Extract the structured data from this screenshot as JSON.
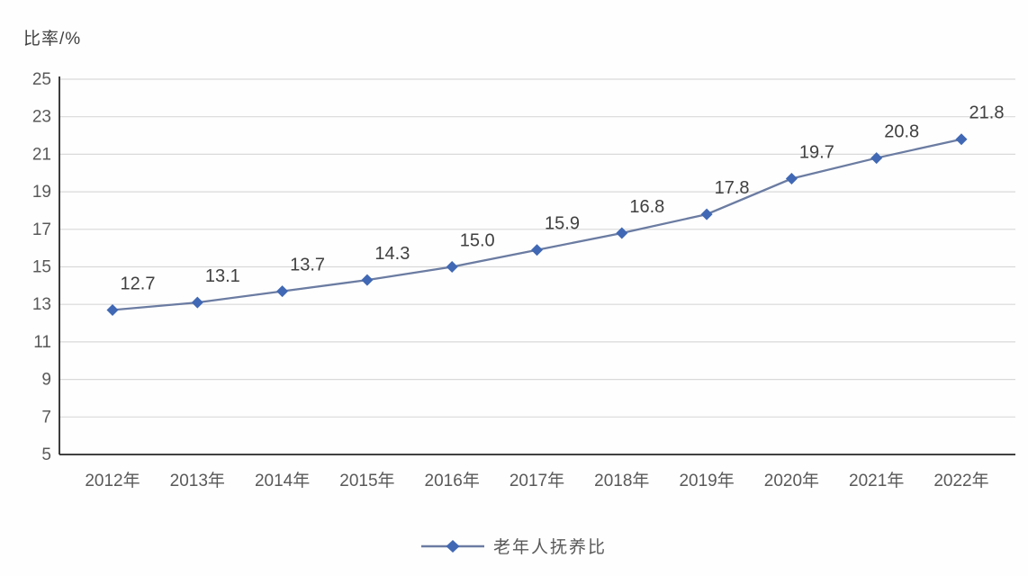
{
  "chart_data": {
    "type": "line",
    "title": "",
    "ylabel": "比率/%",
    "xlabel": "",
    "categories": [
      "2012年",
      "2013年",
      "2014年",
      "2015年",
      "2016年",
      "2017年",
      "2018年",
      "2019年",
      "2020年",
      "2021年",
      "2022年"
    ],
    "series": [
      {
        "name": "老年人抚养比",
        "values": [
          12.7,
          13.1,
          13.7,
          14.3,
          15.0,
          15.9,
          16.8,
          17.8,
          19.7,
          20.8,
          21.8
        ],
        "labels": [
          "12.7",
          "13.1",
          "13.7",
          "14.3",
          "15.0",
          "15.9",
          "16.8",
          "17.8",
          "19.7",
          "20.8",
          "21.8"
        ]
      }
    ],
    "ylim": [
      5,
      25
    ],
    "ytick_step": 2,
    "grid": true,
    "legend_position": "bottom",
    "marker_shape": "diamond",
    "colors": {
      "line": "#6b7ca2",
      "marker": "#4068b4",
      "grid": "#d9d9d9",
      "axis": "#262626",
      "tick_text": "#595959",
      "label_text": "#404040"
    }
  }
}
